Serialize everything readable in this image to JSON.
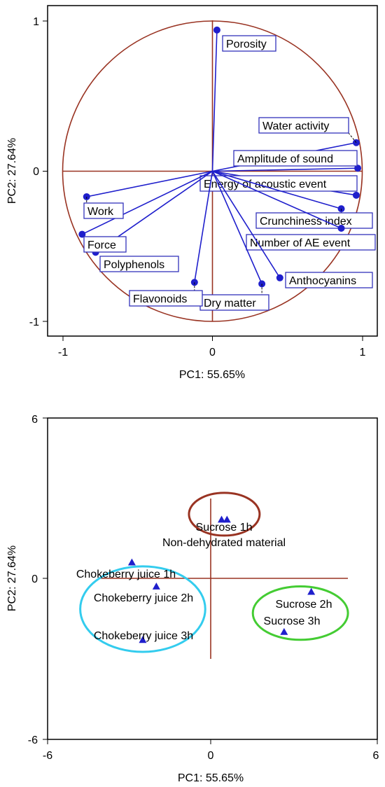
{
  "chart_data": [
    {
      "type": "scatter",
      "subtype": "loading-plot",
      "title": "",
      "xlabel": "PC1: 55.65%",
      "ylabel": "PC2: 27.64%",
      "xlim": [
        -1.1,
        1.1
      ],
      "ylim": [
        -1.1,
        1.1
      ],
      "xticks": [
        "-1",
        "0",
        "1"
      ],
      "yticks": [
        "1",
        "0",
        "-1"
      ],
      "unit_circle": true,
      "colors": {
        "axes": "#000000",
        "circle": "#993322",
        "vectors": "#1f1fcc",
        "label_box": "#3333bb"
      },
      "points": [
        {
          "label": "Porosity",
          "x": 0.03,
          "y": 0.94
        },
        {
          "label": "Water activity",
          "x": 0.96,
          "y": 0.19
        },
        {
          "label": "Amplitude of sound",
          "x": 0.97,
          "y": 0.02
        },
        {
          "label": "Energy of acoustic event",
          "x": 0.96,
          "y": -0.16
        },
        {
          "label": "Crunchiness index",
          "x": 0.86,
          "y": -0.25
        },
        {
          "label": "Number of AE event",
          "x": 0.86,
          "y": -0.38
        },
        {
          "label": "Anthocyanins",
          "x": 0.45,
          "y": -0.71
        },
        {
          "label": "Dry matter",
          "x": 0.33,
          "y": -0.75
        },
        {
          "label": "Flavonoids",
          "x": -0.12,
          "y": -0.74
        },
        {
          "label": "Polyphenols",
          "x": -0.78,
          "y": -0.54
        },
        {
          "label": "Force",
          "x": -0.87,
          "y": -0.42
        },
        {
          "label": "Work",
          "x": -0.84,
          "y": -0.17
        }
      ]
    },
    {
      "type": "scatter",
      "subtype": "score-plot",
      "title": "",
      "xlabel": "PC1: 55.65%",
      "ylabel": "PC2: 27.64%",
      "xlim": [
        -6,
        6
      ],
      "ylim": [
        -6,
        6
      ],
      "xticks": [
        "-6",
        "0",
        "6"
      ],
      "yticks": [
        "6",
        "0",
        "-6"
      ],
      "colors": {
        "axes": "#000000",
        "crosshair": "#993322",
        "markers": "#1f1fcc"
      },
      "points": [
        {
          "label": "Sucrose 1h",
          "x": 0.4,
          "y": 2.2
        },
        {
          "label": "Non-dehydrated material",
          "x": 0.6,
          "y": 2.2
        },
        {
          "label": "Chokeberry juice 1h",
          "x": -2.9,
          "y": 0.6
        },
        {
          "label": "Chokeberry juice 2h",
          "x": -2.0,
          "y": -0.3
        },
        {
          "label": "Chokeberry juice 3h",
          "x": -2.5,
          "y": -2.3
        },
        {
          "label": "Sucrose 2h",
          "x": 3.7,
          "y": -0.5
        },
        {
          "label": "Sucrose 3h",
          "x": 2.7,
          "y": -2.0
        }
      ],
      "groups": [
        {
          "color": "#993322",
          "cx": 0.5,
          "cy": 2.4,
          "rx": 1.3,
          "ry": 0.8
        },
        {
          "color": "#33ccee",
          "cx": -2.5,
          "cy": -1.15,
          "rx": 2.3,
          "ry": 1.6
        },
        {
          "color": "#44cc33",
          "cx": 3.3,
          "cy": -1.3,
          "rx": 1.75,
          "ry": 1.0
        }
      ]
    }
  ]
}
